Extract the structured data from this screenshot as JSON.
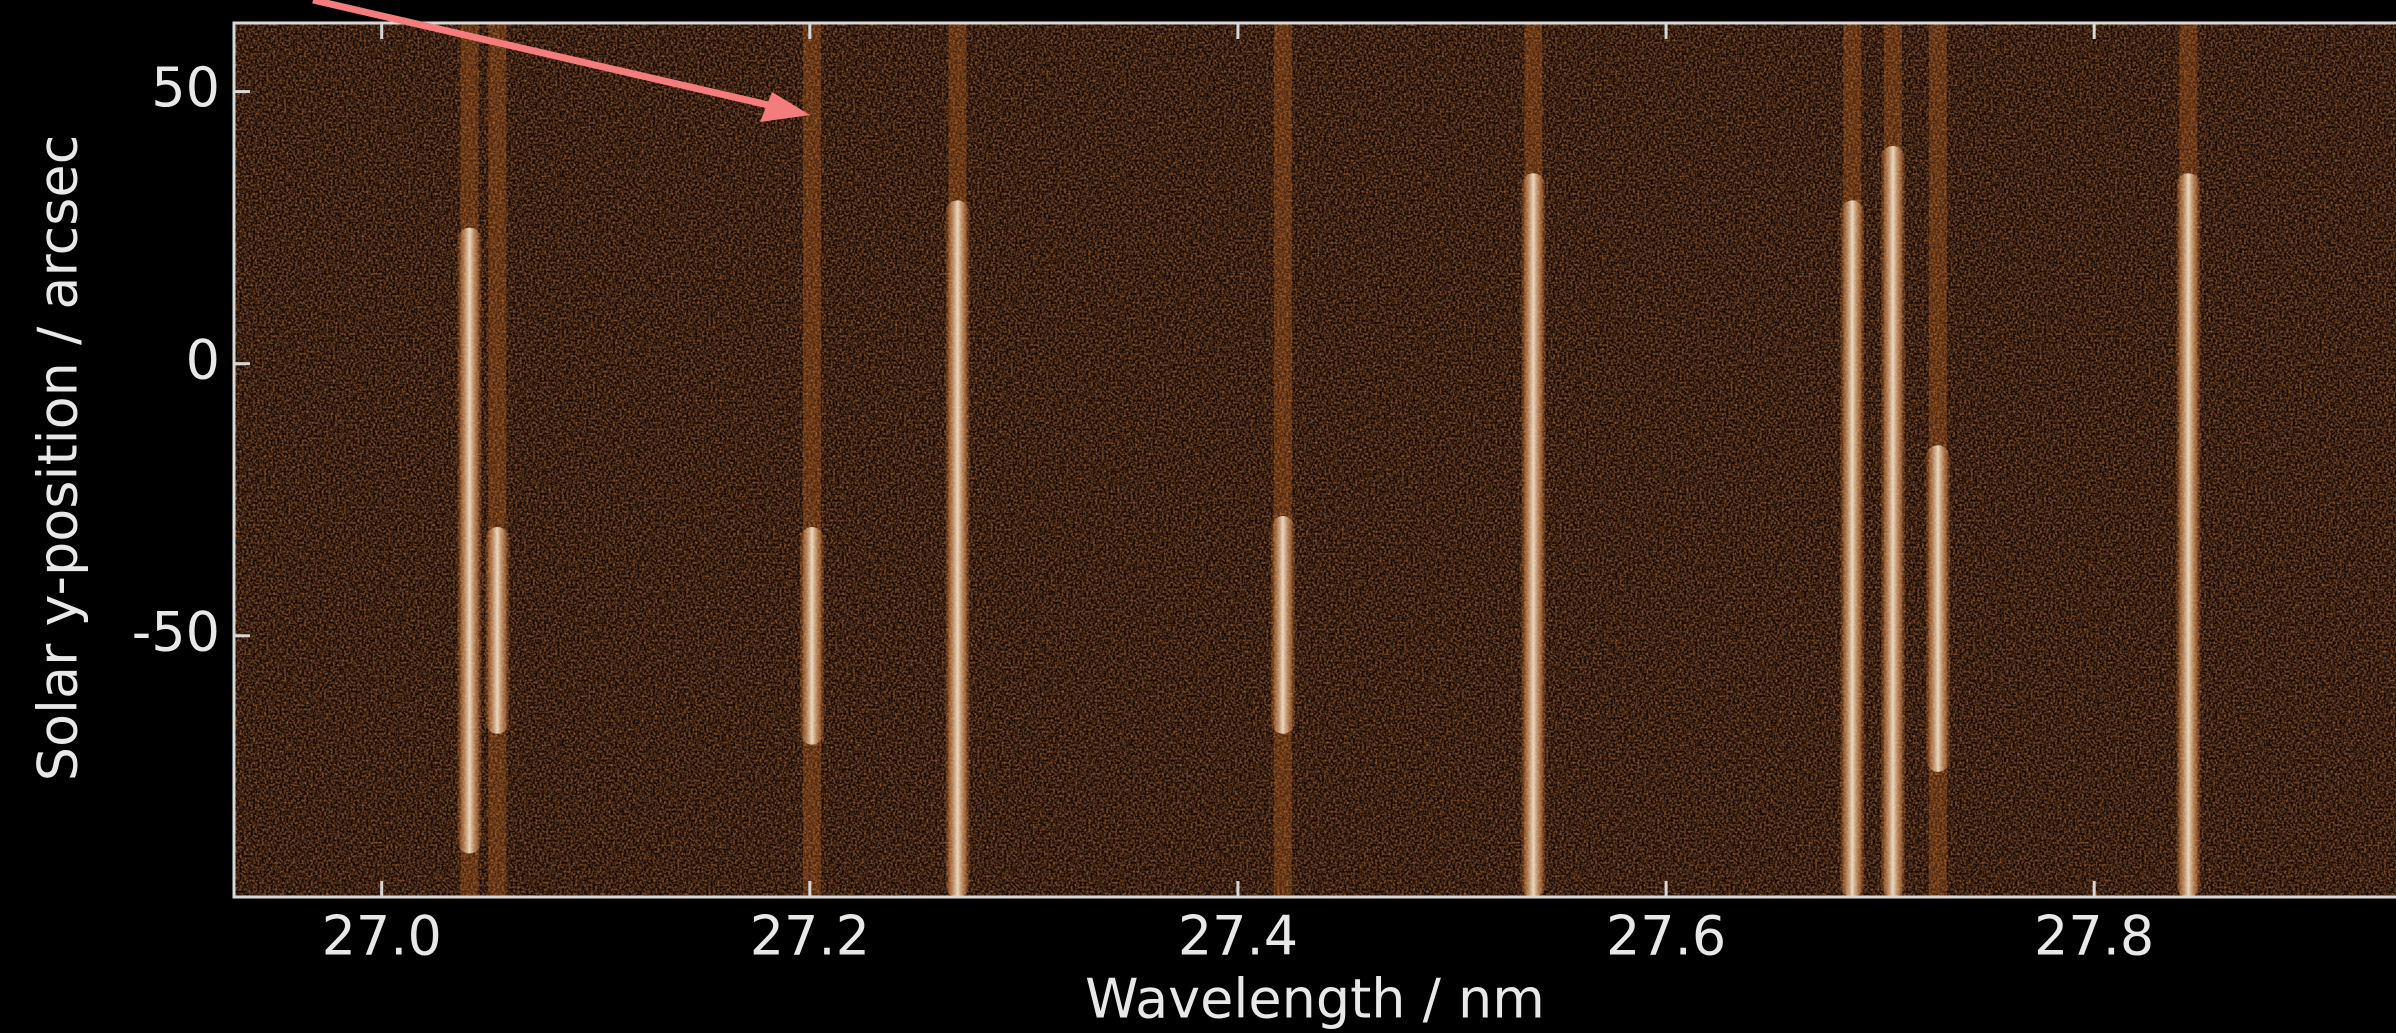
{
  "chart_data": {
    "type": "spectrogram",
    "x_label": "Wavelength / nm",
    "y_label": "Solar y-position / arcsec",
    "x": [
      27.041,
      27.054,
      27.201,
      27.269,
      27.421,
      27.538,
      27.687,
      27.706,
      27.727,
      27.844
    ],
    "y_ranges": [
      [
        -90,
        25
      ],
      [
        -68,
        -30
      ],
      [
        -70,
        -30
      ],
      [
        -98,
        30
      ],
      [
        -68,
        -28
      ],
      [
        -98,
        35
      ],
      [
        -98,
        30
      ],
      [
        -98,
        40
      ],
      [
        -75,
        -15
      ],
      [
        -98,
        35
      ]
    ],
    "color": "#e0782c",
    "xlim": [
      26.931,
      27.941
    ],
    "ylim": [
      -98,
      62.6
    ],
    "xticks": [
      {
        "value": 27.0,
        "label": "27.0"
      },
      {
        "value": 27.2,
        "label": "27.2"
      },
      {
        "value": 27.4,
        "label": "27.4"
      },
      {
        "value": 27.6,
        "label": "27.6"
      },
      {
        "value": 27.8,
        "label": "27.8"
      }
    ],
    "yticks": [
      50,
      0,
      -50
    ]
  }
}
